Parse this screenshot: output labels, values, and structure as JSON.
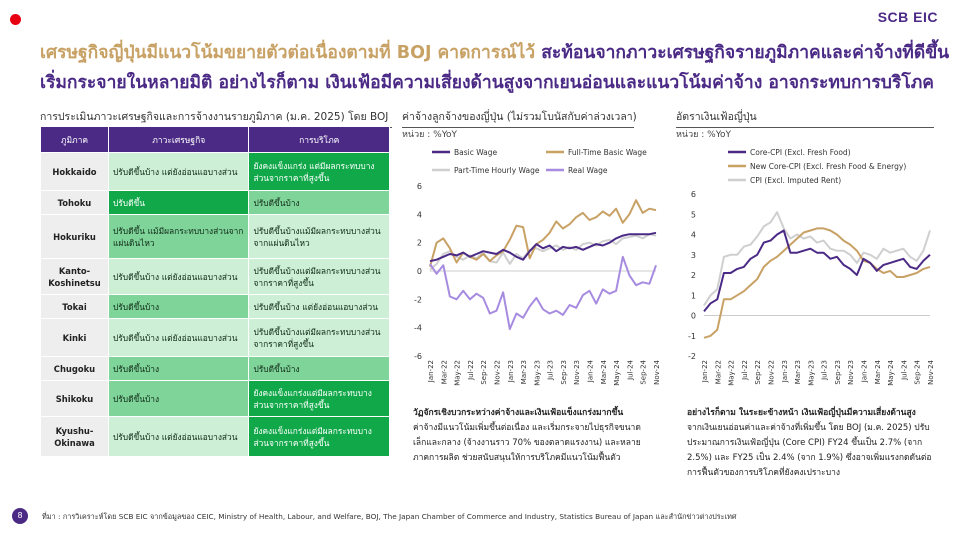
{
  "logo": "SCB EIC",
  "page_number": "8",
  "title": {
    "line1_part1": "เศรษฐกิจญี่ปุ่นมีแนวโน้มขยายตัวต่อเนื่องตามที่ BOJ คาดการณ์ไว้",
    "line1_part2": " สะท้อนจากภาวะเศรษฐกิจรายภูมิภาคและค่าจ้างที่ดีขึ้น",
    "line2": "เริ่มกระจายในหลายมิติ อย่างไรก็ตาม เงินเฟ้อมีความเสี่ยงด้านสูงจากเยนอ่อนและแนวโน้มค่าจ้าง อาจกระทบการบริโภค"
  },
  "table_section": {
    "title": "การประเมินภาวะเศรษฐกิจและการจ้างงานรายภูมิภาค (ม.ค. 2025) โดย BOJ",
    "headers": [
      "ภูมิภาค",
      "ภาวะเศรษฐกิจ",
      "การบริโภค"
    ],
    "rows": [
      {
        "region": "Hokkaido",
        "economy": "ปรับดีขึ้นบ้าง แต่ยังอ่อนแอบางส่วน",
        "economy_level": "light",
        "consumption": "ยังคงแข็งแกร่ง แต่มีผลกระทบบางส่วนจากราคาที่สูงขึ้น",
        "consumption_level": "dark"
      },
      {
        "region": "Tohoku",
        "economy": "ปรับดีขึ้น",
        "economy_level": "dark",
        "consumption": "ปรับดีขึ้นบ้าง",
        "consumption_level": "mid"
      },
      {
        "region": "Hokuriku",
        "economy": "ปรับดีขึ้น แม้มีผลกระทบบางส่วนจากแผ่นดินไหว",
        "economy_level": "mid",
        "consumption": "ปรับดีขึ้นบ้างแม้มีผลกระทบบางส่วนจากแผ่นดินไหว",
        "consumption_level": "light"
      },
      {
        "region": "Kanto-\nKoshinetsu",
        "economy": "ปรับดีขึ้นบ้าง แต่ยังอ่อนแอบางส่วน",
        "economy_level": "light",
        "consumption": "ปรับดีขึ้นบ้างแต่มีผลกระทบบางส่วนจากราคาที่สูงขึ้น",
        "consumption_level": "light"
      },
      {
        "region": "Tokai",
        "economy": "ปรับดีขึ้นบ้าง",
        "economy_level": "mid",
        "consumption": "ปรับดีขึ้นบ้าง แต่ยังอ่อนแอบางส่วน",
        "consumption_level": "light"
      },
      {
        "region": "Kinki",
        "economy": "ปรับดีขึ้นบ้าง แต่ยังอ่อนแอบางส่วน",
        "economy_level": "light",
        "consumption": "ปรับดีขึ้นบ้างแต่มีผลกระทบบางส่วนจากราคาที่สูงขึ้น",
        "consumption_level": "light"
      },
      {
        "region": "Chugoku",
        "economy": "ปรับดีขึ้นบ้าง",
        "economy_level": "mid",
        "consumption": "ปรับดีขึ้นบ้าง",
        "consumption_level": "mid"
      },
      {
        "region": "Shikoku",
        "economy": "ปรับดีขึ้นบ้าง",
        "economy_level": "mid",
        "consumption": "ยังคงแข็งแกร่งแต่มีผลกระทบบางส่วนจากราคาที่สูงขึ้น",
        "consumption_level": "dark"
      },
      {
        "region": "Kyushu-\nOkinawa",
        "economy": "ปรับดีขึ้นบ้าง แต่ยังอ่อนแอบางส่วน",
        "economy_level": "light",
        "consumption": "ยังคงแข็งแกร่งแต่มีผลกระทบบางส่วนจากราคาที่สูงขึ้น",
        "consumption_level": "dark"
      }
    ]
  },
  "colors": {
    "purple": "#4b2a86",
    "gold": "#c8a165",
    "dark_green": "#11a84a",
    "mid_green": "#7fd49a",
    "light_green": "#ccefd6"
  },
  "chart_data": [
    {
      "type": "line",
      "title": "ค่าจ้างลูกจ้างของญี่ปุ่น (ไม่รวมโบนัสกับค่าล่วงเวลา)",
      "unit": "หน่วย : %YoY",
      "ylim": [
        -6,
        6
      ],
      "yticks": [
        -6,
        -4,
        -2,
        0,
        2,
        4,
        6
      ],
      "x_ticks": [
        "Jan-22",
        "Mar-22",
        "May-22",
        "Jul-22",
        "Sep-22",
        "Nov-22",
        "Jan-23",
        "Mar-23",
        "May-23",
        "Jul-23",
        "Sep-23",
        "Nov-23",
        "Jan-24",
        "Mar-24",
        "May-24",
        "Jul-24",
        "Sep-24",
        "Nov-24"
      ],
      "n_points": 35,
      "series": [
        {
          "name": "Basic Wage",
          "color": "#4b2a86",
          "values": [
            0.7,
            0.8,
            1.0,
            1.2,
            1.1,
            1.3,
            1.0,
            1.2,
            1.4,
            1.3,
            1.2,
            1.5,
            1.3,
            1.0,
            0.8,
            1.4,
            1.9,
            1.6,
            1.8,
            1.4,
            1.7,
            1.6,
            1.7,
            1.5,
            1.7,
            1.9,
            1.8,
            2.0,
            2.3,
            2.5,
            2.6,
            2.6,
            2.6,
            2.6,
            2.7
          ]
        },
        {
          "name": "Full-Time Basic Wage",
          "color": "#c8a165",
          "values": [
            0.3,
            2.0,
            2.3,
            1.6,
            0.6,
            1.3,
            1.0,
            0.8,
            1.2,
            0.7,
            1.1,
            1.4,
            2.2,
            3.2,
            3.1,
            0.9,
            1.9,
            2.2,
            2.7,
            3.5,
            3.0,
            3.3,
            3.8,
            4.1,
            3.6,
            3.8,
            4.2,
            3.9,
            4.4,
            3.4,
            4.0,
            5.0,
            4.1,
            4.4,
            4.3
          ]
        },
        {
          "name": "Part-Time Hourly Wage",
          "color": "#cfcfcf",
          "values": [
            0.1,
            0.5,
            1.2,
            1.4,
            1.0,
            0.8,
            1.1,
            0.9,
            1.3,
            0.7,
            0.6,
            1.3,
            0.5,
            1.2,
            0.9,
            1.5,
            1.6,
            1.4,
            1.6,
            1.8,
            1.5,
            1.7,
            1.5,
            1.9,
            2.0,
            1.8,
            2.1,
            2.2,
            1.9,
            2.3,
            2.4,
            2.5,
            2.3,
            2.6,
            2.5
          ]
        },
        {
          "name": "Real Wage",
          "color": "#a78be0",
          "values": [
            0.5,
            -0.2,
            0.4,
            -1.8,
            -2.0,
            -1.4,
            -2.0,
            -1.6,
            -1.9,
            -3.0,
            -2.8,
            -1.5,
            -4.1,
            -3.0,
            -3.3,
            -2.5,
            -1.9,
            -2.7,
            -3.0,
            -2.8,
            -3.1,
            -2.4,
            -2.6,
            -1.7,
            -1.4,
            -2.3,
            -1.3,
            -1.6,
            -1.4,
            1.0,
            -0.3,
            -1.0,
            -0.8,
            -0.9,
            0.4
          ]
        }
      ],
      "note_heading": "วัฏจักรเชิงบวกระหว่างค่าจ้างและเงินเฟ้อแข็งแกร่งมากขึ้น",
      "note_body": "ค่าจ้างมีแนวโน้มเพิ่มขึ้นต่อเนื่อง และเริ่มกระจายไปธุรกิจขนาดเล็กและกลาง (จ้างงานราว 70% ของตลาดแรงงาน) และหลายภาคการผลิต ช่วยสนับสนุนให้การบริโภคมีแนวโน้มฟื้นตัว"
    },
    {
      "type": "line",
      "title": "อัตราเงินเฟ้อญี่ปุ่น",
      "unit": "หน่วย : %YoY",
      "ylim": [
        -2,
        6
      ],
      "yticks": [
        -2,
        -1,
        0,
        1,
        2,
        3,
        4,
        5,
        6
      ],
      "x_ticks": [
        "Jan-22",
        "Mar-22",
        "May-22",
        "Jul-22",
        "Sep-22",
        "Nov-22",
        "Jan-23",
        "Mar-23",
        "May-23",
        "Jul-23",
        "Sep-23",
        "Nov-23",
        "Jan-24",
        "Mar-24",
        "May-24",
        "Jul-24",
        "Sep-24",
        "Nov-24"
      ],
      "n_points": 35,
      "series": [
        {
          "name": "Core-CPI (Excl. Fresh Food)",
          "color": "#4b2a86",
          "values": [
            0.2,
            0.6,
            0.8,
            2.1,
            2.1,
            2.3,
            2.4,
            2.8,
            3.0,
            3.6,
            3.7,
            4.0,
            4.2,
            3.1,
            3.1,
            3.2,
            3.3,
            3.1,
            3.1,
            2.8,
            2.9,
            2.5,
            2.3,
            2.0,
            2.8,
            2.6,
            2.2,
            2.5,
            2.6,
            2.7,
            2.8,
            2.4,
            2.3,
            2.7,
            3.0
          ]
        },
        {
          "name": "New Core-CPI (Excl. Fresh Food & Energy)",
          "color": "#c8a165",
          "values": [
            -1.1,
            -1.0,
            -0.7,
            0.8,
            0.8,
            1.0,
            1.2,
            1.5,
            1.8,
            2.4,
            2.7,
            2.9,
            3.2,
            3.5,
            3.8,
            4.1,
            4.2,
            4.3,
            4.3,
            4.2,
            4.0,
            3.7,
            3.5,
            3.2,
            2.7,
            2.6,
            2.3,
            2.1,
            2.2,
            1.9,
            1.9,
            2.0,
            2.1,
            2.3,
            2.4
          ]
        },
        {
          "name": "CPI (Excl. Imputed Rent)",
          "color": "#cfcfcf",
          "values": [
            0.5,
            1.0,
            1.3,
            2.9,
            3.0,
            3.0,
            3.4,
            3.5,
            3.9,
            4.4,
            4.6,
            5.1,
            4.3,
            3.8,
            4.0,
            3.8,
            3.9,
            3.6,
            3.7,
            3.3,
            3.2,
            3.2,
            3.0,
            2.6,
            3.1,
            3.0,
            2.8,
            3.3,
            3.1,
            3.2,
            3.3,
            2.9,
            2.7,
            3.2,
            4.2
          ]
        }
      ],
      "note_heading": "อย่างไรก็ตาม ในระยะข้างหน้า เงินเฟ้อญี่ปุ่นมีความเสี่ยงด้านสูง",
      "note_body": "จากเงินเยนอ่อนค่าและค่าจ้างที่เพิ่มขึ้น โดย BOJ (ม.ค. 2025) ปรับประมาณการเงินเฟ้อญี่ปุ่น (Core CPI) FY24 ขึ้นเป็น 2.7% (จาก 2.5%) และ FY25 เป็น 2.4% (จาก 1.9%) ซึ่งอาจเพิ่มแรงกดดันต่อการฟื้นตัวของการบริโภคที่ยังคงเปราะบาง"
    }
  ],
  "source": "ที่มา : การวิเคราะห์โดย SCB EIC จากข้อมูลของ CEIC, Ministry of Health, Labour, and Welfare, BOJ, The Japan Chamber of Commerce and Industry, Statistics Bureau of Japan และสำนักข่าวต่างประเทศ"
}
